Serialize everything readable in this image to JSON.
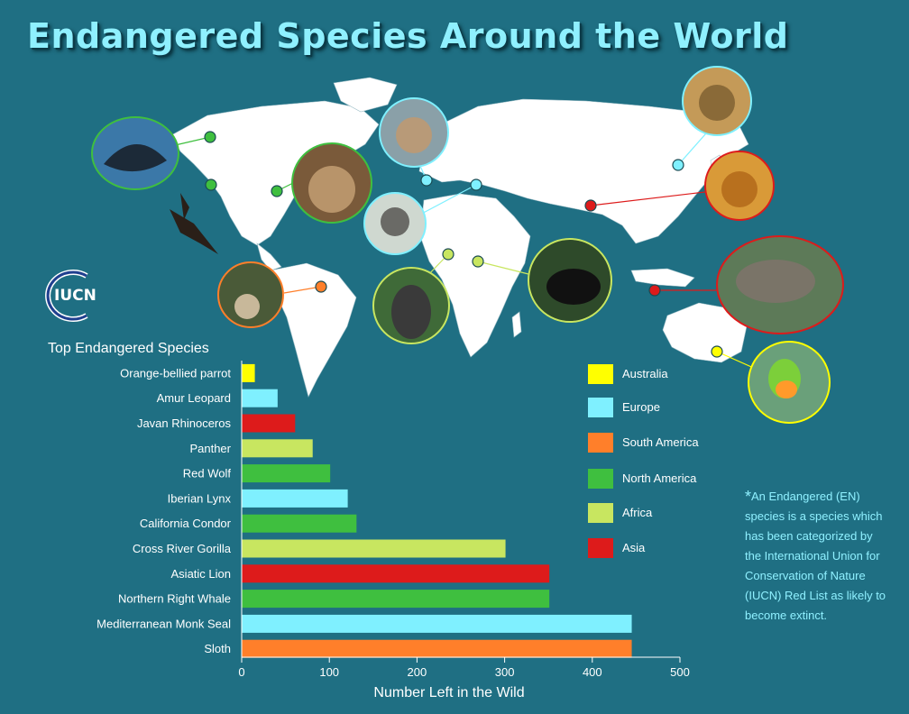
{
  "title": "Endangered Species Around the World",
  "logo_text": "IUCN",
  "footnote": {
    "star": "*",
    "text": "An Endangered (EN) species is a species which has been categorized by the International Union for Conservation of Nature (IUCN) Red List as likely to become extinct."
  },
  "colors": {
    "background": "#1f6f83",
    "land": "#ffffff",
    "Australia": "#ffff00",
    "Europe": "#7ff0ff",
    "South America": "#ff7f2a",
    "North America": "#3fbf3f",
    "Africa": "#c8e660",
    "Asia": "#dd1b1b"
  },
  "legend": [
    "Australia",
    "Europe",
    "South America",
    "North America",
    "Africa",
    "Asia"
  ],
  "map_markers": [
    {
      "species": "Northern Right Whale",
      "region": "North America"
    },
    {
      "species": "California Condor",
      "region": "North America"
    },
    {
      "species": "Red Wolf",
      "region": "North America"
    },
    {
      "species": "Iberian Lynx",
      "region": "Europe"
    },
    {
      "species": "Mediterranean Monk Seal",
      "region": "Europe"
    },
    {
      "species": "Amur Leopard",
      "region": "Europe"
    },
    {
      "species": "Asiatic Lion",
      "region": "Asia"
    },
    {
      "species": "Javan Rhinoceros",
      "region": "Asia"
    },
    {
      "species": "Sloth",
      "region": "South America"
    },
    {
      "species": "Cross River Gorilla",
      "region": "Africa"
    },
    {
      "species": "Panther",
      "region": "Africa"
    },
    {
      "species": "Orange-bellied parrot",
      "region": "Australia"
    }
  ],
  "chart_data": {
    "type": "bar",
    "orientation": "horizontal",
    "title": "Top Endangered Species",
    "xlabel": "Number Left in the Wild",
    "ylabel": "",
    "xlim": [
      0,
      500
    ],
    "xticks": [
      0,
      100,
      200,
      300,
      400,
      500
    ],
    "grid": false,
    "legend_position": "right",
    "categories": [
      "Orange-bellied parrot",
      "Amur Leopard",
      "Javan Rhinoceros",
      "Panther",
      "Red Wolf",
      "Iberian Lynx",
      "California Condor",
      "Cross River Gorilla",
      "Asiatic Lion",
      "Northern Right Whale",
      "Mediterranean Monk Seal",
      "Sloth"
    ],
    "values": [
      15,
      41,
      61,
      81,
      101,
      121,
      131,
      301,
      351,
      351,
      445,
      445
    ],
    "regions": [
      "Australia",
      "Europe",
      "Asia",
      "Africa",
      "North America",
      "Europe",
      "North America",
      "Africa",
      "Asia",
      "North America",
      "Europe",
      "South America"
    ]
  }
}
